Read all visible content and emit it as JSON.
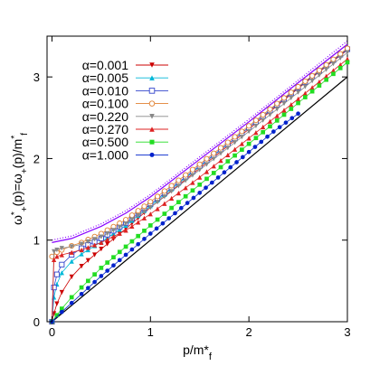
{
  "chart_data": {
    "type": "line",
    "xlabel": "p/m*f",
    "ylabel": "ω*+(p)=ω+(p)/m*f",
    "xlim": [
      -0.05,
      3
    ],
    "ylim": [
      0,
      3.5
    ],
    "x_ticks": [
      0,
      1,
      2,
      3
    ],
    "x_tick_labels": [
      "0",
      "1",
      "2",
      "3"
    ],
    "y_ticks": [
      0,
      1,
      2,
      3
    ],
    "y_tick_labels": [
      "0",
      "1",
      "2",
      "3"
    ],
    "grid": false,
    "legend_position": "top-left",
    "reference_line": {
      "x": [
        0,
        3
      ],
      "y": [
        0,
        3
      ]
    },
    "series": [
      {
        "name": "α=0.001",
        "color": "#cc0000",
        "marker": "triangle-down",
        "points": [
          [
            0,
            0
          ],
          [
            0.02,
            0.1
          ],
          [
            0.05,
            0.22
          ],
          [
            0.1,
            0.36
          ],
          [
            0.2,
            0.55
          ],
          [
            0.3,
            0.68
          ],
          [
            0.5,
            0.89
          ],
          [
            0.75,
            1.14
          ],
          [
            1.0,
            1.4
          ],
          [
            1.5,
            1.88
          ],
          [
            2.0,
            2.36
          ],
          [
            2.5,
            2.86
          ],
          [
            3.0,
            3.33
          ]
        ]
      },
      {
        "name": "α=0.005",
        "color": "#00b8d8",
        "marker": "triangle",
        "points": [
          [
            0,
            0
          ],
          [
            0.02,
            0.3
          ],
          [
            0.05,
            0.46
          ],
          [
            0.1,
            0.6
          ],
          [
            0.2,
            0.74
          ],
          [
            0.3,
            0.83
          ],
          [
            0.5,
            0.98
          ],
          [
            0.75,
            1.18
          ],
          [
            1.0,
            1.42
          ],
          [
            1.5,
            1.9
          ],
          [
            2.0,
            2.38
          ],
          [
            2.5,
            2.87
          ],
          [
            3.0,
            3.34
          ]
        ]
      },
      {
        "name": "α=0.010",
        "color": "#3344cc",
        "marker": "square-open",
        "points": [
          [
            0,
            0
          ],
          [
            0.02,
            0.42
          ],
          [
            0.05,
            0.58
          ],
          [
            0.1,
            0.7
          ],
          [
            0.2,
            0.82
          ],
          [
            0.3,
            0.9
          ],
          [
            0.5,
            1.02
          ],
          [
            0.75,
            1.21
          ],
          [
            1.0,
            1.44
          ],
          [
            1.5,
            1.91
          ],
          [
            2.0,
            2.38
          ],
          [
            2.5,
            2.87
          ],
          [
            3.0,
            3.34
          ]
        ]
      },
      {
        "name": "α=0.100",
        "color": "#e08030",
        "marker": "circle-open",
        "points": [
          [
            0,
            0.8
          ],
          [
            0.05,
            0.85
          ],
          [
            0.1,
            0.88
          ],
          [
            0.2,
            0.93
          ],
          [
            0.3,
            0.97
          ],
          [
            0.5,
            1.08
          ],
          [
            0.75,
            1.25
          ],
          [
            1.0,
            1.47
          ],
          [
            1.5,
            1.93
          ],
          [
            2.0,
            2.4
          ],
          [
            2.5,
            2.88
          ],
          [
            3.0,
            3.35
          ]
        ]
      },
      {
        "name": "α=0.220",
        "color": "#888888",
        "marker": "triangle-down",
        "points": [
          [
            0,
            0
          ],
          [
            0.02,
            0.86
          ],
          [
            0.05,
            0.88
          ],
          [
            0.1,
            0.9
          ],
          [
            0.2,
            0.92
          ],
          [
            0.3,
            0.95
          ],
          [
            0.5,
            1.04
          ],
          [
            0.75,
            1.2
          ],
          [
            1.0,
            1.4
          ],
          [
            1.5,
            1.86
          ],
          [
            2.0,
            2.33
          ],
          [
            2.5,
            2.81
          ],
          [
            3.0,
            3.3
          ]
        ]
      },
      {
        "name": "α=0.270",
        "color": "#dd2222",
        "marker": "triangle",
        "points": [
          [
            0,
            0
          ],
          [
            0.02,
            0.76
          ],
          [
            0.05,
            0.8
          ],
          [
            0.1,
            0.82
          ],
          [
            0.2,
            0.85
          ],
          [
            0.3,
            0.88
          ],
          [
            0.5,
            0.97
          ],
          [
            0.75,
            1.12
          ],
          [
            1.0,
            1.32
          ],
          [
            1.5,
            1.77
          ],
          [
            2.0,
            2.25
          ],
          [
            2.5,
            2.73
          ],
          [
            3.0,
            3.22
          ]
        ]
      },
      {
        "name": "α=0.500",
        "color": "#22dd22",
        "marker": "square",
        "points": [
          [
            0,
            0
          ],
          [
            0.05,
            0.08
          ],
          [
            0.1,
            0.16
          ],
          [
            0.2,
            0.3
          ],
          [
            0.3,
            0.42
          ],
          [
            0.5,
            0.66
          ],
          [
            0.75,
            0.92
          ],
          [
            1.0,
            1.18
          ],
          [
            1.5,
            1.68
          ],
          [
            2.0,
            2.18
          ],
          [
            2.5,
            2.68
          ],
          [
            3.0,
            3.18
          ]
        ]
      },
      {
        "name": "α=1.000",
        "color": "#0022cc",
        "marker": "circle",
        "points": [
          [
            0,
            0
          ],
          [
            0.1,
            0.12
          ],
          [
            0.2,
            0.23
          ],
          [
            0.3,
            0.34
          ],
          [
            0.5,
            0.56
          ],
          [
            0.75,
            0.82
          ],
          [
            1.0,
            1.08
          ],
          [
            1.25,
            1.33
          ],
          [
            1.5,
            1.58
          ],
          [
            1.75,
            1.83
          ],
          [
            2.0,
            2.08
          ],
          [
            2.25,
            2.33
          ],
          [
            2.5,
            2.55
          ]
        ]
      }
    ],
    "upper_curves": [
      {
        "color": "#8800ff",
        "dash": "1,2",
        "points": [
          [
            0,
            1.0
          ],
          [
            0.2,
            1.05
          ],
          [
            0.5,
            1.2
          ],
          [
            0.75,
            1.36
          ],
          [
            1.0,
            1.56
          ],
          [
            1.5,
            2.02
          ],
          [
            2.0,
            2.48
          ],
          [
            2.5,
            2.96
          ],
          [
            3.0,
            3.44
          ]
        ]
      },
      {
        "color": "#8800ff",
        "dash": "none",
        "points": [
          [
            0,
            0.97
          ],
          [
            0.2,
            1.02
          ],
          [
            0.5,
            1.17
          ],
          [
            0.75,
            1.33
          ],
          [
            1.0,
            1.53
          ],
          [
            1.5,
            1.99
          ],
          [
            2.0,
            2.45
          ],
          [
            2.5,
            2.93
          ],
          [
            3.0,
            3.4
          ]
        ]
      }
    ]
  }
}
